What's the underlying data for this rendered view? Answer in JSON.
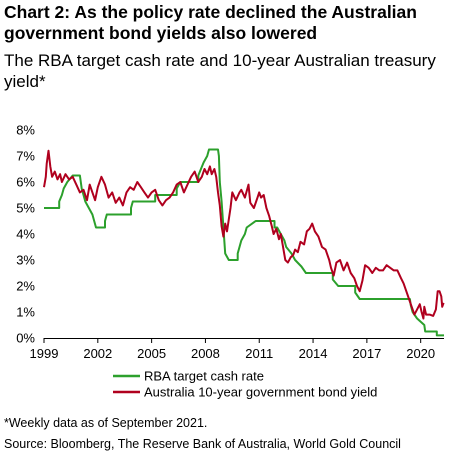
{
  "chart_title": "Chart 2: As the policy rate declined the Australian government bond yields also lowered",
  "chart_subtitle": "The RBA target cash rate and 10-year Australian treasury yield*",
  "footnote": "*Weekly data as of September 2021.",
  "source": "Source: Bloomberg, The Reserve Bank of Australia, World Gold Council",
  "chart_data": {
    "type": "line",
    "title": "Chart 2: As the policy rate declined the Australian government bond yields also lowered",
    "subtitle": "The RBA target cash rate and 10-year Australian treasury yield*",
    "xlim": [
      1999,
      2021.3
    ],
    "ylim": [
      0,
      8
    ],
    "x_ticks": [
      "1999",
      "2002",
      "2005",
      "2008",
      "2011",
      "2014",
      "2017",
      "2020"
    ],
    "y_ticks": [
      "0%",
      "1%",
      "2%",
      "3%",
      "4%",
      "5%",
      "6%",
      "7%",
      "8%"
    ],
    "grid": false,
    "legend_position": "bottom",
    "series": [
      {
        "name": "RBA target cash rate",
        "color": "#2ca02c",
        "step": true,
        "points": [
          [
            1999.0,
            5.0
          ],
          [
            1999.85,
            5.0
          ],
          [
            1999.85,
            5.25
          ],
          [
            2000.0,
            5.5
          ],
          [
            2000.1,
            5.75
          ],
          [
            2000.3,
            6.0
          ],
          [
            2000.6,
            6.25
          ],
          [
            2001.0,
            6.25
          ],
          [
            2001.1,
            5.75
          ],
          [
            2001.2,
            5.5
          ],
          [
            2001.3,
            5.25
          ],
          [
            2001.7,
            4.75
          ],
          [
            2001.9,
            4.25
          ],
          [
            2002.4,
            4.25
          ],
          [
            2002.4,
            4.5
          ],
          [
            2002.5,
            4.75
          ],
          [
            2003.85,
            4.75
          ],
          [
            2003.85,
            5.0
          ],
          [
            2003.95,
            5.25
          ],
          [
            2005.2,
            5.25
          ],
          [
            2005.2,
            5.5
          ],
          [
            2006.4,
            5.5
          ],
          [
            2006.4,
            5.75
          ],
          [
            2006.6,
            6.0
          ],
          [
            2007.6,
            6.0
          ],
          [
            2007.6,
            6.25
          ],
          [
            2007.9,
            6.75
          ],
          [
            2008.1,
            7.0
          ],
          [
            2008.2,
            7.25
          ],
          [
            2008.7,
            7.25
          ],
          [
            2008.75,
            7.0
          ],
          [
            2008.8,
            6.0
          ],
          [
            2008.9,
            5.25
          ],
          [
            2009.0,
            4.25
          ],
          [
            2009.1,
            3.25
          ],
          [
            2009.3,
            3.0
          ],
          [
            2009.8,
            3.0
          ],
          [
            2009.8,
            3.25
          ],
          [
            2009.9,
            3.5
          ],
          [
            2010.0,
            3.75
          ],
          [
            2010.2,
            4.0
          ],
          [
            2010.3,
            4.25
          ],
          [
            2010.8,
            4.5
          ],
          [
            2011.85,
            4.5
          ],
          [
            2011.85,
            4.25
          ],
          [
            2012.0,
            4.25
          ],
          [
            2012.4,
            3.75
          ],
          [
            2012.5,
            3.5
          ],
          [
            2012.8,
            3.25
          ],
          [
            2013.0,
            3.0
          ],
          [
            2013.35,
            2.75
          ],
          [
            2013.6,
            2.5
          ],
          [
            2015.1,
            2.5
          ],
          [
            2015.1,
            2.25
          ],
          [
            2015.4,
            2.0
          ],
          [
            2016.35,
            2.0
          ],
          [
            2016.35,
            1.75
          ],
          [
            2016.6,
            1.5
          ],
          [
            2019.4,
            1.5
          ],
          [
            2019.45,
            1.25
          ],
          [
            2019.55,
            1.0
          ],
          [
            2019.8,
            0.75
          ],
          [
            2020.2,
            0.5
          ],
          [
            2020.25,
            0.25
          ],
          [
            2020.9,
            0.25
          ],
          [
            2020.9,
            0.1
          ],
          [
            2021.3,
            0.1
          ]
        ]
      },
      {
        "name": "Australia 10-year government bond yield",
        "color": "#b0001e",
        "step": false,
        "points": [
          [
            1999.0,
            5.8
          ],
          [
            1999.1,
            6.2
          ],
          [
            1999.15,
            6.7
          ],
          [
            1999.25,
            7.2
          ],
          [
            1999.35,
            6.6
          ],
          [
            1999.45,
            6.2
          ],
          [
            1999.6,
            6.4
          ],
          [
            1999.75,
            6.1
          ],
          [
            1999.9,
            6.3
          ],
          [
            2000.0,
            6.0
          ],
          [
            2000.2,
            6.3
          ],
          [
            2000.4,
            6.1
          ],
          [
            2000.6,
            6.2
          ],
          [
            2000.8,
            5.9
          ],
          [
            2001.0,
            5.6
          ],
          [
            2001.2,
            5.7
          ],
          [
            2001.4,
            5.3
          ],
          [
            2001.55,
            5.9
          ],
          [
            2001.7,
            5.6
          ],
          [
            2001.85,
            5.3
          ],
          [
            2002.0,
            5.8
          ],
          [
            2002.2,
            6.2
          ],
          [
            2002.4,
            5.9
          ],
          [
            2002.6,
            5.4
          ],
          [
            2002.8,
            5.6
          ],
          [
            2003.0,
            5.2
          ],
          [
            2003.2,
            5.4
          ],
          [
            2003.4,
            5.1
          ],
          [
            2003.6,
            5.6
          ],
          [
            2003.8,
            5.8
          ],
          [
            2004.0,
            5.7
          ],
          [
            2004.2,
            6.0
          ],
          [
            2004.4,
            5.8
          ],
          [
            2004.6,
            5.6
          ],
          [
            2004.8,
            5.4
          ],
          [
            2005.0,
            5.6
          ],
          [
            2005.2,
            5.7
          ],
          [
            2005.4,
            5.3
          ],
          [
            2005.6,
            5.1
          ],
          [
            2005.8,
            5.3
          ],
          [
            2006.0,
            5.4
          ],
          [
            2006.2,
            5.6
          ],
          [
            2006.4,
            5.9
          ],
          [
            2006.6,
            6.0
          ],
          [
            2006.8,
            5.6
          ],
          [
            2007.0,
            5.9
          ],
          [
            2007.2,
            6.2
          ],
          [
            2007.4,
            6.4
          ],
          [
            2007.6,
            6.0
          ],
          [
            2007.8,
            6.2
          ],
          [
            2007.95,
            6.5
          ],
          [
            2008.1,
            6.3
          ],
          [
            2008.25,
            6.6
          ],
          [
            2008.35,
            6.3
          ],
          [
            2008.5,
            6.5
          ],
          [
            2008.6,
            6.2
          ],
          [
            2008.7,
            5.6
          ],
          [
            2008.8,
            5.1
          ],
          [
            2008.9,
            4.3
          ],
          [
            2009.0,
            3.9
          ],
          [
            2009.1,
            4.4
          ],
          [
            2009.2,
            4.1
          ],
          [
            2009.4,
            5.0
          ],
          [
            2009.5,
            5.6
          ],
          [
            2009.7,
            5.3
          ],
          [
            2009.9,
            5.6
          ],
          [
            2010.0,
            5.7
          ],
          [
            2010.2,
            5.4
          ],
          [
            2010.4,
            5.9
          ],
          [
            2010.5,
            5.2
          ],
          [
            2010.7,
            5.0
          ],
          [
            2010.9,
            5.4
          ],
          [
            2011.0,
            5.6
          ],
          [
            2011.1,
            5.4
          ],
          [
            2011.25,
            5.5
          ],
          [
            2011.4,
            5.0
          ],
          [
            2011.55,
            4.7
          ],
          [
            2011.7,
            4.3
          ],
          [
            2011.8,
            4.0
          ],
          [
            2011.95,
            4.2
          ],
          [
            2012.1,
            3.8
          ],
          [
            2012.2,
            4.0
          ],
          [
            2012.35,
            3.4
          ],
          [
            2012.45,
            3.0
          ],
          [
            2012.6,
            2.9
          ],
          [
            2012.75,
            3.1
          ],
          [
            2012.9,
            3.2
          ],
          [
            2013.0,
            3.4
          ],
          [
            2013.15,
            3.3
          ],
          [
            2013.3,
            3.7
          ],
          [
            2013.5,
            3.6
          ],
          [
            2013.65,
            4.1
          ],
          [
            2013.8,
            4.2
          ],
          [
            2013.95,
            4.4
          ],
          [
            2014.1,
            4.1
          ],
          [
            2014.3,
            3.9
          ],
          [
            2014.5,
            3.5
          ],
          [
            2014.7,
            3.4
          ],
          [
            2014.9,
            3.0
          ],
          [
            2015.0,
            2.7
          ],
          [
            2015.15,
            2.4
          ],
          [
            2015.3,
            2.9
          ],
          [
            2015.5,
            3.0
          ],
          [
            2015.7,
            2.6
          ],
          [
            2015.9,
            2.9
          ],
          [
            2016.1,
            2.5
          ],
          [
            2016.3,
            2.3
          ],
          [
            2016.45,
            2.0
          ],
          [
            2016.6,
            1.8
          ],
          [
            2016.75,
            2.2
          ],
          [
            2016.9,
            2.8
          ],
          [
            2017.1,
            2.7
          ],
          [
            2017.3,
            2.5
          ],
          [
            2017.5,
            2.7
          ],
          [
            2017.7,
            2.6
          ],
          [
            2017.9,
            2.6
          ],
          [
            2018.1,
            2.8
          ],
          [
            2018.3,
            2.7
          ],
          [
            2018.5,
            2.6
          ],
          [
            2018.7,
            2.6
          ],
          [
            2018.9,
            2.3
          ],
          [
            2019.05,
            2.1
          ],
          [
            2019.2,
            1.8
          ],
          [
            2019.35,
            1.5
          ],
          [
            2019.5,
            1.2
          ],
          [
            2019.65,
            0.9
          ],
          [
            2019.8,
            1.1
          ],
          [
            2019.95,
            1.3
          ],
          [
            2020.05,
            1.0
          ],
          [
            2020.15,
            0.75
          ],
          [
            2020.2,
            1.2
          ],
          [
            2020.3,
            0.9
          ],
          [
            2020.5,
            0.9
          ],
          [
            2020.7,
            0.85
          ],
          [
            2020.85,
            1.1
          ],
          [
            2020.95,
            1.8
          ],
          [
            2021.05,
            1.8
          ],
          [
            2021.15,
            1.6
          ],
          [
            2021.2,
            1.2
          ],
          [
            2021.28,
            1.35
          ]
        ]
      }
    ]
  }
}
